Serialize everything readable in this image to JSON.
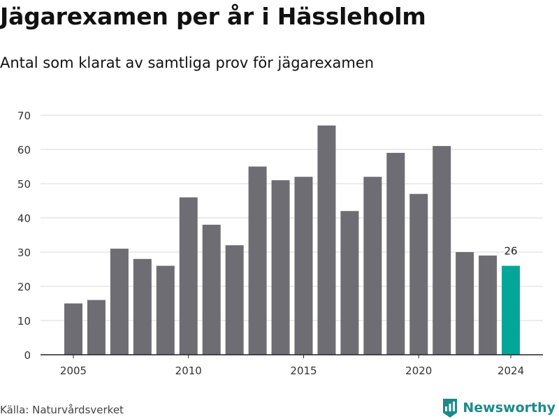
{
  "title": "Jägarexamen per år i Hässleholm",
  "subtitle": "Antal som klarat av samtliga prov för jägarexamen",
  "source": "Källa: Naturvårdsverket",
  "brand": {
    "name": "Newsworthy",
    "icon": "newsworthy-logo-icon",
    "color": "#1d8a8a"
  },
  "chart_data": {
    "type": "bar",
    "title": "",
    "xlabel": "",
    "ylabel": "",
    "x": [
      2005,
      2006,
      2007,
      2008,
      2009,
      2010,
      2011,
      2012,
      2013,
      2014,
      2015,
      2016,
      2017,
      2018,
      2019,
      2020,
      2021,
      2022,
      2023,
      2024
    ],
    "values": [
      15,
      16,
      31,
      28,
      26,
      46,
      38,
      32,
      55,
      51,
      52,
      67,
      42,
      52,
      59,
      47,
      61,
      30,
      29,
      26
    ],
    "x_ticks": [
      "2005",
      "2010",
      "2015",
      "2020",
      "2024"
    ],
    "y_ticks": [
      0,
      10,
      20,
      30,
      40,
      50,
      60,
      70
    ],
    "ylim": [
      0,
      70
    ],
    "grid": true,
    "colors": {
      "default": "#6e6d73",
      "highlight": "#05a69a"
    },
    "highlight_index": 19,
    "annotation": {
      "index": 19,
      "text": "26"
    }
  }
}
